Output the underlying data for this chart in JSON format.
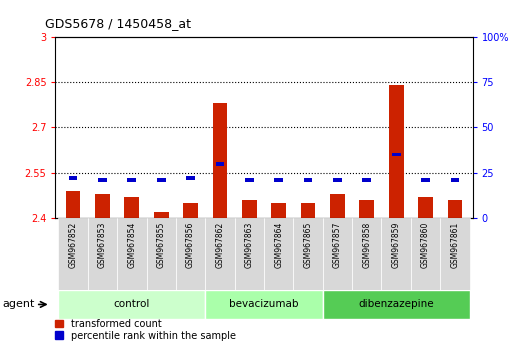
{
  "title": "GDS5678 / 1450458_at",
  "samples": [
    "GSM967852",
    "GSM967853",
    "GSM967854",
    "GSM967855",
    "GSM967856",
    "GSM967862",
    "GSM967863",
    "GSM967864",
    "GSM967865",
    "GSM967857",
    "GSM967858",
    "GSM967859",
    "GSM967860",
    "GSM967861"
  ],
  "red_values": [
    2.49,
    2.48,
    2.47,
    2.42,
    2.45,
    2.78,
    2.46,
    2.45,
    2.45,
    2.48,
    2.46,
    2.84,
    2.47,
    2.46
  ],
  "blue_values_pct": [
    22,
    21,
    21,
    21,
    22,
    30,
    21,
    21,
    21,
    21,
    21,
    35,
    21,
    21
  ],
  "ylim_left": [
    2.4,
    3.0
  ],
  "ylim_right": [
    0,
    100
  ],
  "yticks_left": [
    2.4,
    2.55,
    2.7,
    2.85,
    3.0
  ],
  "yticks_right": [
    0,
    25,
    50,
    75,
    100
  ],
  "ytick_labels_left": [
    "2.4",
    "2.55",
    "2.7",
    "2.85",
    "3"
  ],
  "ytick_labels_right": [
    "0",
    "25",
    "50",
    "75",
    "100%"
  ],
  "hlines": [
    2.55,
    2.7,
    2.85
  ],
  "groups": [
    {
      "label": "control",
      "start": 0,
      "end": 5,
      "color": "#ccffcc"
    },
    {
      "label": "bevacizumab",
      "start": 5,
      "end": 9,
      "color": "#aaffaa"
    },
    {
      "label": "dibenzazepine",
      "start": 9,
      "end": 14,
      "color": "#55cc55"
    }
  ],
  "agent_label": "agent",
  "legend_red": "transformed count",
  "legend_blue": "percentile rank within the sample",
  "bar_color_red": "#cc2200",
  "bar_color_blue": "#0000cc",
  "bar_width": 0.5,
  "blue_bar_width": 0.3
}
